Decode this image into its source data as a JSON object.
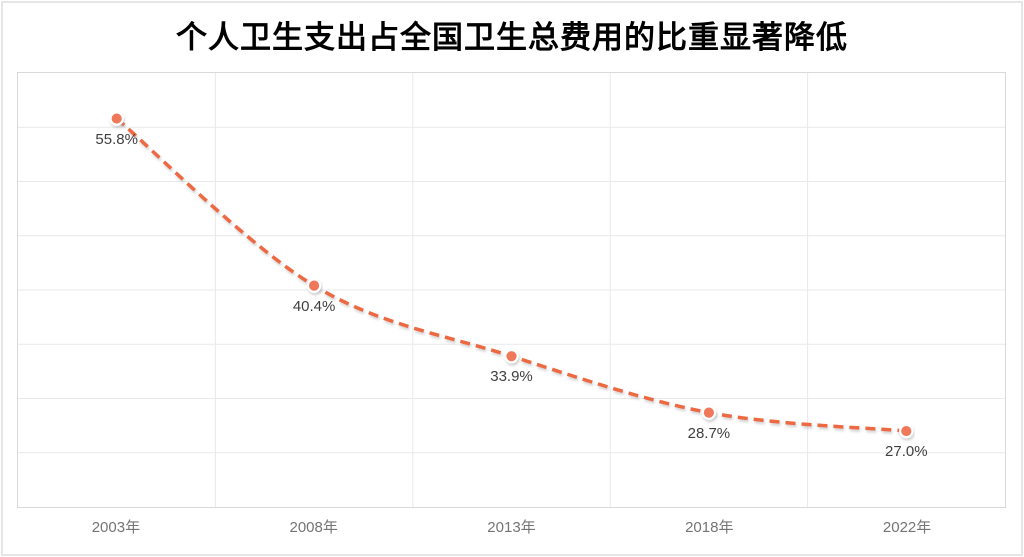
{
  "title": "个人卫生支出占全国卫生总费用的比重显著降低",
  "chart_data": {
    "type": "line",
    "title": "个人卫生支出占全国卫生总费用的比重显著降低",
    "categories": [
      "2003年",
      "2008年",
      "2013年",
      "2018年",
      "2022年"
    ],
    "values": [
      55.8,
      40.4,
      33.9,
      28.7,
      27.0
    ],
    "data_labels": [
      "55.8%",
      "40.4%",
      "33.9%",
      "28.7%",
      "27.0%"
    ],
    "xlabel": "",
    "ylabel": "",
    "ylim": [
      20,
      60
    ],
    "grid_step": 5,
    "grid": true,
    "legend": "none",
    "line_style": "dashed",
    "smooth": true,
    "marker": "circle",
    "data_label_position": "below",
    "colors": {
      "line": "#ED6943",
      "marker_fill": "#F0785A",
      "marker_ring": "#FFFFFF",
      "gridline": "#E9E9E9",
      "plot_border": "#D9D9D9",
      "outer_border": "#E6E6E6",
      "title_text": "#000000",
      "data_label_text": "#404040",
      "axis_label_text": "#757575",
      "background": "#FFFFFF"
    }
  }
}
